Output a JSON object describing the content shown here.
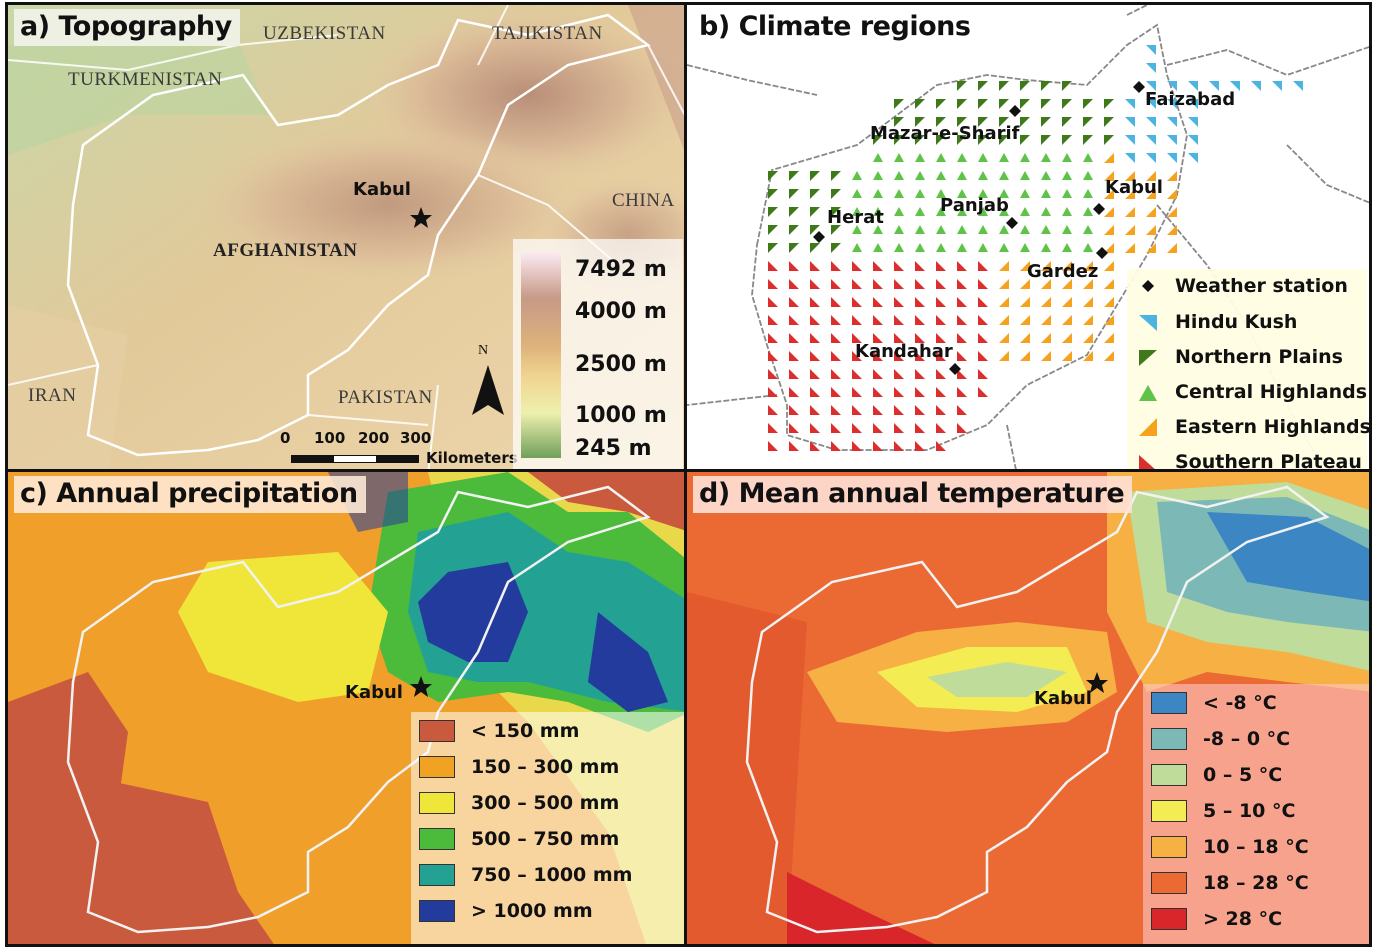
{
  "panel_a": {
    "title": "a) Topography",
    "countries": {
      "uzbekistan": "UZBEKISTAN",
      "tajikistan": "TAJIKISTAN",
      "turkmenistan": "TURKMENISTAN",
      "afghanistan": "AFGHANISTAN",
      "china": "CHINA",
      "iran": "IRAN",
      "pakistan": "PAKISTAN"
    },
    "city": "Kabul",
    "elevation_legend": [
      "7492 m",
      "4000 m",
      "2500 m",
      "1000 m",
      "245 m"
    ],
    "north": "N",
    "scale": {
      "ticks": [
        "0",
        "100",
        "200",
        "300"
      ],
      "unit": "Kilometers"
    }
  },
  "panel_b": {
    "title": "b) Climate regions",
    "stations": [
      "Faizabad",
      "Mazar-e-Sharif",
      "Kabul",
      "Herat",
      "Panjab",
      "Gardez",
      "Kandahar"
    ],
    "legend": {
      "weather_station": "Weather station",
      "regions": [
        {
          "name": "Hindu Kush",
          "color": "#4bb4e0"
        },
        {
          "name": "Northern Plains",
          "color": "#3f7a1a"
        },
        {
          "name": "Central Highlands",
          "color": "#5fc34a"
        },
        {
          "name": "Eastern Highlands",
          "color": "#f5a21e"
        },
        {
          "name": "Southern Plateau",
          "color": "#dd2e2e"
        }
      ]
    }
  },
  "panel_c": {
    "title": "c) Annual precipitation",
    "city": "Kabul",
    "legend": [
      {
        "label": "< 150 mm",
        "color": "#c95a3e"
      },
      {
        "label": "150 – 300 mm",
        "color": "#f0a323"
      },
      {
        "label": "300 – 500 mm",
        "color": "#f0e63a"
      },
      {
        "label": "500 – 750 mm",
        "color": "#4cbb3c"
      },
      {
        "label": "750 – 1000 mm",
        "color": "#23a293"
      },
      {
        "label": "> 1000 mm",
        "color": "#233b9c"
      }
    ]
  },
  "panel_d": {
    "title": "d) Mean annual temperature",
    "city": "Kabul",
    "legend": [
      {
        "label": "< -8 °C",
        "color": "#3b86c3"
      },
      {
        "label": "-8 – 0 °C",
        "color": "#7bb8b6"
      },
      {
        "label": "0 – 5 °C",
        "color": "#bfdc9a"
      },
      {
        "label": "5 – 10 °C",
        "color": "#f3ec53"
      },
      {
        "label": "10 – 18 °C",
        "color": "#f6b043"
      },
      {
        "label": "18 – 28 °C",
        "color": "#eb6a34"
      },
      {
        "label": "> 28 °C",
        "color": "#d9262a"
      }
    ]
  }
}
